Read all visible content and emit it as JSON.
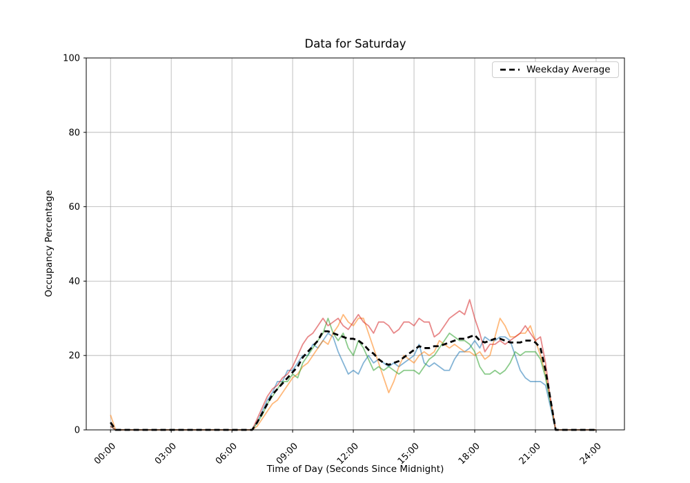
{
  "figure": {
    "background": "#ffffff"
  },
  "chart_data": {
    "type": "line",
    "title": "Data for Saturday",
    "xlabel": "Time of Day (Seconds Since Midnight)",
    "ylabel": "Occupancy Percentage",
    "x_unit": "hours_since_midnight",
    "x_start": 0,
    "x_step": 0.25,
    "xlim": [
      -1.2,
      25.4
    ],
    "ylim": [
      0,
      100
    ],
    "grid": {
      "show": true,
      "color": "#b0b0b0"
    },
    "x_ticks": {
      "hours": [
        0,
        3,
        6,
        9,
        12,
        15,
        18,
        21,
        24
      ],
      "labels": [
        "00:00",
        "03:00",
        "06:00",
        "09:00",
        "12:00",
        "15:00",
        "18:00",
        "21:00",
        "24:00"
      ],
      "rotation_deg": 45
    },
    "y_ticks": {
      "values": [
        0,
        20,
        40,
        60,
        80,
        100
      ],
      "labels": [
        "0",
        "20",
        "40",
        "60",
        "80",
        "100"
      ]
    },
    "legend": {
      "location": "upper right",
      "entries": [
        {
          "label": "Weekday Average",
          "color": "#000000",
          "dashed": true
        }
      ]
    },
    "series": [
      {
        "name": "saturday-series-1",
        "color": "#1f77b4",
        "alpha": 0.55,
        "dashed": false,
        "width": 1.8,
        "values": [
          1,
          0,
          0,
          0,
          0,
          0,
          0,
          0,
          0,
          0,
          0,
          0,
          0,
          0,
          0,
          0,
          0,
          0,
          0,
          0,
          0,
          0,
          0,
          0,
          0,
          0,
          0,
          0,
          0,
          2,
          5,
          8,
          10,
          13,
          13,
          16,
          16,
          18,
          20,
          20,
          23,
          22,
          24,
          26,
          25,
          21,
          18,
          15,
          16,
          15,
          18,
          20,
          18,
          19,
          18,
          17,
          18,
          17,
          18,
          19,
          20,
          23,
          18,
          17,
          18,
          17,
          16,
          16,
          19,
          21,
          21,
          22,
          24,
          22,
          25,
          24,
          24,
          25,
          25,
          24,
          20,
          16,
          14,
          13,
          13,
          13,
          12,
          6,
          0,
          0,
          0,
          0,
          0,
          0,
          0,
          0,
          0
        ]
      },
      {
        "name": "saturday-series-2",
        "color": "#ff7f0e",
        "alpha": 0.55,
        "dashed": false,
        "width": 1.8,
        "values": [
          4,
          0,
          0,
          0,
          0,
          0,
          0,
          0,
          0,
          0,
          0,
          0,
          0,
          0,
          0,
          0,
          0,
          0,
          0,
          0,
          0,
          0,
          0,
          0,
          0,
          0,
          0,
          0,
          0,
          1,
          3,
          5,
          7,
          8,
          10,
          12,
          14,
          15,
          17,
          18,
          20,
          22,
          24,
          23,
          26,
          28,
          31,
          29,
          28,
          30,
          30,
          26,
          22,
          18,
          14,
          10,
          13,
          17,
          20,
          19,
          18,
          20,
          21,
          20,
          21,
          24,
          23,
          22,
          23,
          22,
          21,
          21,
          20,
          21,
          19,
          20,
          25,
          30,
          28,
          25,
          25,
          26,
          26,
          28,
          24,
          20,
          15,
          8,
          0,
          0,
          0,
          0,
          0,
          0,
          0,
          0,
          0
        ]
      },
      {
        "name": "saturday-series-3",
        "color": "#2ca02c",
        "alpha": 0.55,
        "dashed": false,
        "width": 1.8,
        "values": [
          1,
          0,
          0,
          0,
          0,
          0,
          0,
          0,
          0,
          0,
          0,
          0,
          0,
          0,
          0,
          0,
          0,
          0,
          0,
          0,
          0,
          0,
          0,
          0,
          0,
          0,
          0,
          0,
          0,
          2,
          4,
          7,
          9,
          11,
          13,
          13,
          15,
          14,
          18,
          20,
          22,
          24,
          26,
          30,
          26,
          24,
          26,
          22,
          20,
          24,
          22,
          19,
          16,
          17,
          16,
          17,
          16,
          15,
          16,
          16,
          16,
          15,
          17,
          19,
          20,
          22,
          24,
          26,
          25,
          24,
          24,
          23,
          21,
          17,
          15,
          15,
          16,
          15,
          16,
          18,
          21,
          20,
          21,
          21,
          21,
          19,
          14,
          7,
          0,
          0,
          0,
          0,
          0,
          0,
          0,
          0,
          0
        ]
      },
      {
        "name": "saturday-series-4",
        "color": "#d62728",
        "alpha": 0.55,
        "dashed": false,
        "width": 1.8,
        "values": [
          1,
          0,
          0,
          0,
          0,
          0,
          0,
          0,
          0,
          0,
          0,
          0,
          0,
          0,
          0,
          0,
          0,
          0,
          0,
          0,
          0,
          0,
          0,
          0,
          0,
          0,
          0,
          0,
          0,
          3,
          6,
          9,
          11,
          12,
          14,
          15,
          17,
          20,
          23,
          25,
          26,
          28,
          30,
          28,
          29,
          30,
          28,
          27,
          29,
          31,
          29,
          28,
          26,
          29,
          29,
          28,
          26,
          27,
          29,
          29,
          28,
          30,
          29,
          29,
          25,
          26,
          28,
          30,
          31,
          32,
          31,
          35,
          30,
          26,
          21,
          23,
          23,
          24,
          23,
          24,
          25,
          26,
          28,
          26,
          24,
          25,
          18,
          8,
          0,
          0,
          0,
          0,
          0,
          0,
          0,
          0,
          0
        ]
      },
      {
        "name": "weekday-average",
        "label": "Weekday Average",
        "color": "#000000",
        "alpha": 1,
        "dashed": true,
        "width": 2.8,
        "values": [
          2,
          0,
          0,
          0,
          0,
          0,
          0,
          0,
          0,
          0,
          0,
          0,
          0,
          0,
          0,
          0,
          0,
          0,
          0,
          0,
          0,
          0,
          0,
          0,
          0,
          0,
          0,
          0,
          0,
          2,
          4.5,
          7,
          9.5,
          11,
          12.5,
          14,
          15.5,
          17,
          19.5,
          21,
          22.5,
          24,
          26.5,
          26.5,
          26,
          25.5,
          25,
          24.5,
          24.5,
          24,
          23,
          21.5,
          20.5,
          19,
          18,
          17.5,
          18,
          18.5,
          19.5,
          20.5,
          21.5,
          22.5,
          22,
          22,
          22.5,
          22.5,
          23,
          23.5,
          24,
          24.5,
          24.5,
          25,
          25.5,
          24,
          23.5,
          24,
          24.5,
          24.5,
          24,
          23.5,
          23.5,
          23.5,
          24,
          24,
          23.5,
          22,
          16,
          8,
          0,
          0,
          0,
          0,
          0,
          0,
          0,
          0,
          0
        ]
      }
    ]
  }
}
